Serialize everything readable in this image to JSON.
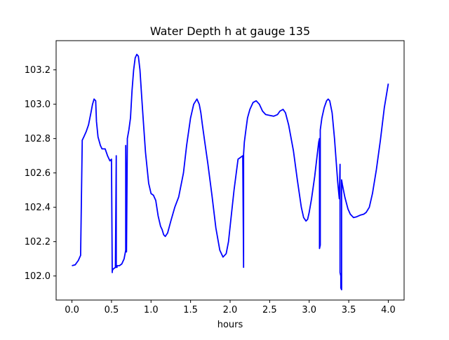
{
  "chart_data": {
    "type": "line",
    "title": "Water Depth h at gauge 135",
    "xlabel": "hours",
    "ylabel": "",
    "xlim": [
      -0.2,
      4.2
    ],
    "ylim": [
      101.86,
      103.37
    ],
    "grid": false,
    "legend": "none",
    "x_ticks": [
      0.0,
      0.5,
      1.0,
      1.5,
      2.0,
      2.5,
      3.0,
      3.5,
      4.0
    ],
    "x_tick_labels": [
      "0.0",
      "0.5",
      "1.0",
      "1.5",
      "2.0",
      "2.5",
      "3.0",
      "3.5",
      "4.0"
    ],
    "y_ticks": [
      102.0,
      102.2,
      102.4,
      102.6,
      102.8,
      103.0,
      103.2
    ],
    "y_tick_labels": [
      "102.0",
      "102.2",
      "102.4",
      "102.6",
      "102.8",
      "103.0",
      "103.2"
    ],
    "series": [
      {
        "color": "#0000ff",
        "x": [
          0.0,
          0.04,
          0.08,
          0.11,
          0.13,
          0.13,
          0.15,
          0.18,
          0.21,
          0.24,
          0.26,
          0.28,
          0.3,
          0.31,
          0.33,
          0.36,
          0.38,
          0.42,
          0.45,
          0.48,
          0.5,
          0.51,
          0.51,
          0.52,
          0.55,
          0.56,
          0.56,
          0.57,
          0.57,
          0.6,
          0.63,
          0.66,
          0.68,
          0.68,
          0.69,
          0.69,
          0.7,
          0.7,
          0.72,
          0.74,
          0.76,
          0.78,
          0.8,
          0.82,
          0.84,
          0.86,
          0.88,
          0.9,
          0.93,
          0.97,
          1.0,
          1.03,
          1.06,
          1.09,
          1.12,
          1.14,
          1.16,
          1.18,
          1.21,
          1.25,
          1.3,
          1.35,
          1.41,
          1.45,
          1.5,
          1.54,
          1.58,
          1.61,
          1.63,
          1.65,
          1.68,
          1.72,
          1.77,
          1.82,
          1.87,
          1.91,
          1.95,
          1.98,
          2.01,
          2.05,
          2.1,
          2.16,
          2.17,
          2.17,
          2.18,
          2.2,
          2.22,
          2.25,
          2.29,
          2.33,
          2.37,
          2.41,
          2.45,
          2.5,
          2.55,
          2.6,
          2.63,
          2.67,
          2.7,
          2.74,
          2.8,
          2.85,
          2.9,
          2.93,
          2.96,
          2.98,
          3.0,
          3.03,
          3.07,
          3.1,
          3.12,
          3.13,
          3.13,
          3.14,
          3.14,
          3.16,
          3.19,
          3.22,
          3.24,
          3.26,
          3.29,
          3.32,
          3.36,
          3.38,
          3.39,
          3.39,
          3.4,
          3.4,
          3.41,
          3.41,
          3.42,
          3.45,
          3.49,
          3.52,
          3.56,
          3.6,
          3.65,
          3.69,
          3.72,
          3.76,
          3.8,
          3.85,
          3.9,
          3.95,
          4.0
        ],
        "y": [
          102.06,
          102.065,
          102.09,
          102.12,
          102.78,
          102.79,
          102.81,
          102.84,
          102.88,
          102.95,
          103.0,
          103.03,
          103.02,
          102.9,
          102.81,
          102.76,
          102.74,
          102.74,
          102.7,
          102.67,
          102.68,
          102.02,
          102.03,
          102.04,
          102.05,
          102.7,
          102.05,
          102.05,
          102.06,
          102.06,
          102.07,
          102.1,
          102.15,
          102.76,
          102.16,
          102.14,
          102.78,
          102.8,
          102.85,
          102.92,
          103.08,
          103.2,
          103.27,
          103.29,
          103.28,
          103.2,
          103.06,
          102.92,
          102.72,
          102.54,
          102.48,
          102.47,
          102.44,
          102.35,
          102.29,
          102.27,
          102.24,
          102.23,
          102.25,
          102.32,
          102.4,
          102.46,
          102.6,
          102.76,
          102.92,
          103.0,
          103.03,
          103.0,
          102.95,
          102.88,
          102.78,
          102.65,
          102.47,
          102.28,
          102.15,
          102.11,
          102.13,
          102.2,
          102.33,
          102.5,
          102.68,
          102.7,
          102.05,
          102.71,
          102.78,
          102.85,
          102.92,
          102.97,
          103.01,
          103.02,
          103.0,
          102.96,
          102.94,
          102.935,
          102.93,
          102.94,
          102.96,
          102.97,
          102.95,
          102.88,
          102.73,
          102.56,
          102.4,
          102.34,
          102.32,
          102.33,
          102.37,
          102.45,
          102.58,
          102.7,
          102.78,
          102.8,
          102.16,
          102.18,
          102.85,
          102.92,
          102.98,
          103.02,
          103.03,
          103.02,
          102.95,
          102.8,
          102.55,
          102.45,
          102.65,
          102.02,
          102.0,
          101.93,
          101.92,
          102.56,
          102.53,
          102.46,
          102.39,
          102.36,
          102.34,
          102.345,
          102.355,
          102.36,
          102.37,
          102.4,
          102.48,
          102.62,
          102.79,
          102.98,
          103.12
        ]
      }
    ]
  }
}
